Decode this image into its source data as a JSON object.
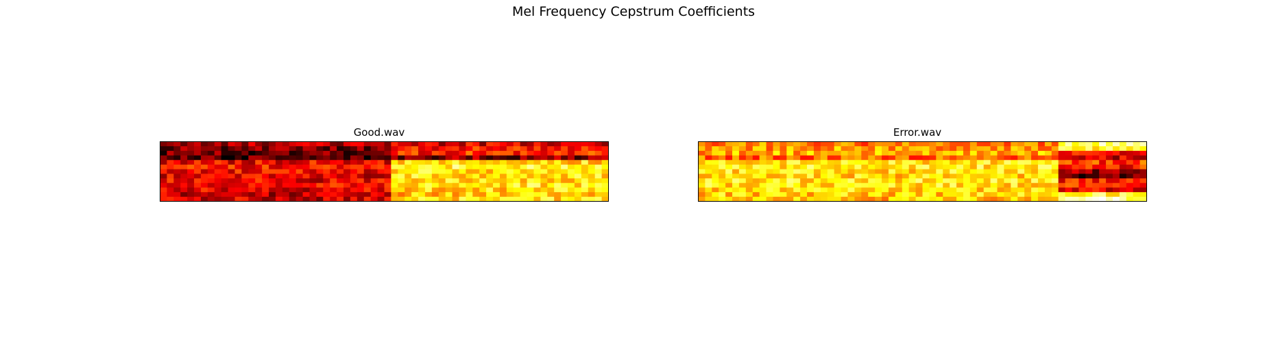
{
  "figure": {
    "title": "Mel Frequency Cepstrum Coefficients"
  },
  "chart_data": [
    {
      "type": "heatmap",
      "title": "Good.wav",
      "colormap": "hot",
      "axes": "off",
      "n_rows": 13,
      "n_cols": 66,
      "value_range": [
        0,
        1
      ],
      "segments": [
        {
          "from_col": 0,
          "to_col": 34,
          "row_means": [
            0.25,
            0.18,
            0.15,
            0.12,
            0.35,
            0.38,
            0.36,
            0.33,
            0.34,
            0.37,
            0.33,
            0.28,
            0.3
          ]
        },
        {
          "from_col": 34,
          "to_col": 66,
          "row_means": [
            0.32,
            0.4,
            0.42,
            0.2,
            0.7,
            0.78,
            0.72,
            0.72,
            0.7,
            0.74,
            0.7,
            0.66,
            0.72
          ]
        }
      ]
    },
    {
      "type": "heatmap",
      "title": "Error.wav",
      "colormap": "hot",
      "axes": "off",
      "n_rows": 13,
      "n_cols": 66,
      "value_range": [
        0,
        1
      ],
      "segments": [
        {
          "from_col": 0,
          "to_col": 53,
          "row_means": [
            0.55,
            0.6,
            0.62,
            0.52,
            0.72,
            0.74,
            0.72,
            0.7,
            0.74,
            0.72,
            0.7,
            0.68,
            0.66
          ]
        },
        {
          "from_col": 53,
          "to_col": 66,
          "row_means": [
            0.85,
            0.75,
            0.35,
            0.3,
            0.45,
            0.4,
            0.2,
            0.15,
            0.4,
            0.45,
            0.35,
            0.8,
            0.9
          ]
        }
      ]
    }
  ]
}
